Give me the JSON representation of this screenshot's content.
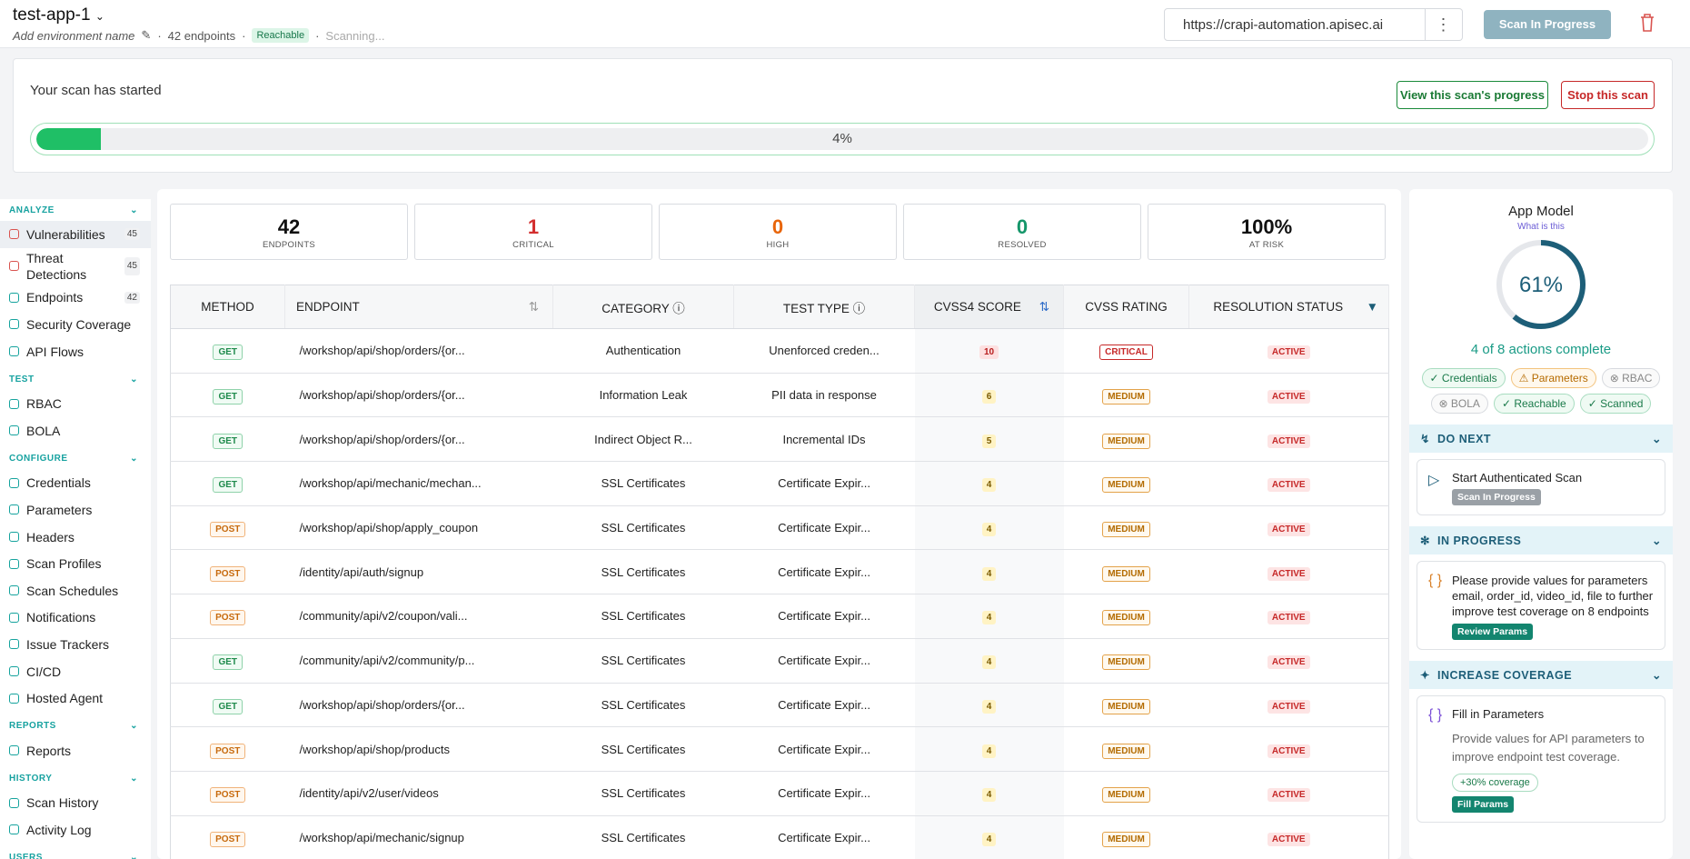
{
  "header": {
    "app_name": "test-app-1",
    "env_name": "Add environment name",
    "endpoints": "42 endpoints",
    "status": "Reachable",
    "scan_state": "Scanning...",
    "url": "https://crapi-automation.apisec.ai",
    "scan_button": "Scan In Progress"
  },
  "banner": {
    "title": "Your scan has started",
    "view_button": "View this scan's progress",
    "stop_button": "Stop this scan",
    "progress": {
      "value": 4,
      "label": "4%"
    }
  },
  "sidebar": [
    {
      "title": "ANALYZE",
      "items": [
        {
          "label": "Vulnerabilities",
          "count": "45"
        },
        {
          "label": "Threat Detections",
          "count": "45"
        },
        {
          "label": "Endpoints",
          "count": "42"
        },
        {
          "label": "Security Coverage"
        },
        {
          "label": "API Flows"
        }
      ]
    },
    {
      "title": "TEST",
      "items": [
        {
          "label": "RBAC"
        },
        {
          "label": "BOLA"
        }
      ]
    },
    {
      "title": "CONFIGURE",
      "items": [
        {
          "label": "Credentials"
        },
        {
          "label": "Parameters"
        },
        {
          "label": "Headers"
        },
        {
          "label": "Scan Profiles"
        },
        {
          "label": "Scan Schedules"
        },
        {
          "label": "Notifications"
        },
        {
          "label": "Issue Trackers"
        },
        {
          "label": "CI/CD"
        },
        {
          "label": "Hosted Agent"
        }
      ]
    },
    {
      "title": "REPORTS",
      "items": [
        {
          "label": "Reports"
        }
      ]
    },
    {
      "title": "HISTORY",
      "items": [
        {
          "label": "Scan History"
        },
        {
          "label": "Activity Log"
        }
      ]
    },
    {
      "title": "USERS"
    }
  ],
  "stats": [
    {
      "value": "42",
      "label": "ENDPOINTS"
    },
    {
      "value": "1",
      "label": "CRITICAL"
    },
    {
      "value": "0",
      "label": "HIGH"
    },
    {
      "value": "0",
      "label": "RESOLVED"
    },
    {
      "value": "100%",
      "label": "AT RISK"
    }
  ],
  "table": {
    "headers": [
      "METHOD",
      "ENDPOINT",
      "CATEGORY",
      "TEST TYPE",
      "CVSS4 SCORE",
      "CVSS RATING",
      "RESOLUTION STATUS"
    ],
    "rows": [
      [
        "GET",
        "/workshop/api/shop/orders/{or...",
        "Authentication",
        "Unenforced creden...",
        "10",
        "CRITICAL",
        "ACTIVE"
      ],
      [
        "GET",
        "/workshop/api/shop/orders/{or...",
        "Information Leak",
        "PII data in response",
        "6",
        "MEDIUM",
        "ACTIVE"
      ],
      [
        "GET",
        "/workshop/api/shop/orders/{or...",
        "Indirect Object R...",
        "Incremental IDs",
        "5",
        "MEDIUM",
        "ACTIVE"
      ],
      [
        "GET",
        "/workshop/api/mechanic/mechan...",
        "SSL Certificates",
        "Certificate Expir...",
        "4",
        "MEDIUM",
        "ACTIVE"
      ],
      [
        "POST",
        "/workshop/api/shop/apply_coupon",
        "SSL Certificates",
        "Certificate Expir...",
        "4",
        "MEDIUM",
        "ACTIVE"
      ],
      [
        "POST",
        "/identity/api/auth/signup",
        "SSL Certificates",
        "Certificate Expir...",
        "4",
        "MEDIUM",
        "ACTIVE"
      ],
      [
        "POST",
        "/community/api/v2/coupon/vali...",
        "SSL Certificates",
        "Certificate Expir...",
        "4",
        "MEDIUM",
        "ACTIVE"
      ],
      [
        "GET",
        "/community/api/v2/community/p...",
        "SSL Certificates",
        "Certificate Expir...",
        "4",
        "MEDIUM",
        "ACTIVE"
      ],
      [
        "GET",
        "/workshop/api/shop/orders/{or...",
        "SSL Certificates",
        "Certificate Expir...",
        "4",
        "MEDIUM",
        "ACTIVE"
      ],
      [
        "POST",
        "/workshop/api/shop/products",
        "SSL Certificates",
        "Certificate Expir...",
        "4",
        "MEDIUM",
        "ACTIVE"
      ],
      [
        "POST",
        "/identity/api/v2/user/videos",
        "SSL Certificates",
        "Certificate Expir...",
        "4",
        "MEDIUM",
        "ACTIVE"
      ],
      [
        "POST",
        "/workshop/api/mechanic/signup",
        "SSL Certificates",
        "Certificate Expir...",
        "4",
        "MEDIUM",
        "ACTIVE"
      ]
    ]
  },
  "app_model": {
    "title": "App Model",
    "link": "What is this",
    "progress": {
      "value": 61,
      "label": "61%"
    },
    "summary": "4 of 8 actions complete",
    "chips": [
      "Credentials",
      "Parameters",
      "RBAC",
      "BOLA",
      "Reachable",
      "Scanned"
    ],
    "do_next": {
      "title": "DO NEXT",
      "item": "Start Authenticated Scan",
      "badge": "Scan In Progress"
    },
    "in_progress": {
      "title": "IN PROGRESS",
      "text": "Please provide values for parameters email, order_id, video_id, file to further improve test coverage on 8 endpoints",
      "button": "Review Params"
    },
    "increase_coverage": {
      "title": "INCREASE COVERAGE",
      "item": "Fill in Parameters",
      "text": "Provide values for API parameters to improve endpoint test coverage.",
      "chip": "+30% coverage",
      "button": "Fill Params"
    }
  }
}
